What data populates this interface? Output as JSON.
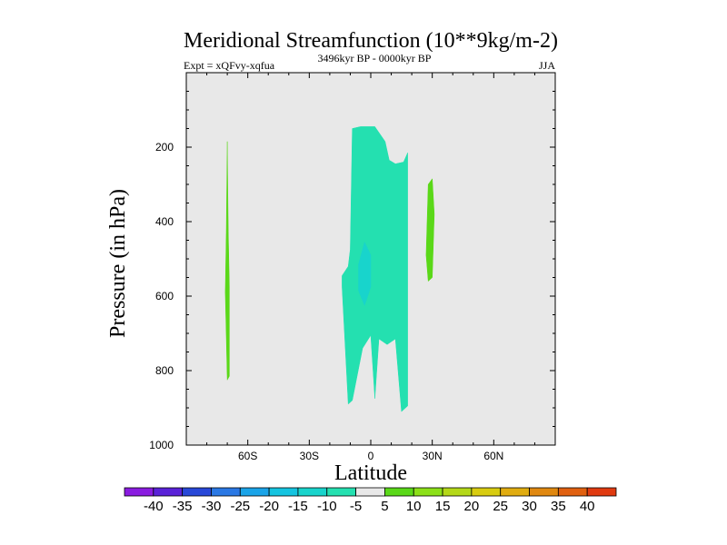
{
  "chart_data": {
    "type": "contour",
    "title": "Meridional Streamfunction (10**9kg/m-2)",
    "subtitle_left": "Expt = xQFvy-xqfua",
    "subtitle_center": "3496kyr BP - 0000kyr BP",
    "subtitle_right": "JJA",
    "xlabel": "Latitude",
    "ylabel": "Pressure (in hPa)",
    "xlim": [
      -90,
      90
    ],
    "ylim": [
      1000,
      0
    ],
    "x_ticks": [
      {
        "value": -60,
        "label": "60S"
      },
      {
        "value": -30,
        "label": "30S"
      },
      {
        "value": 0,
        "label": "0"
      },
      {
        "value": 30,
        "label": "30N"
      },
      {
        "value": 60,
        "label": "60N"
      }
    ],
    "y_ticks": [
      {
        "value": 200,
        "label": "200"
      },
      {
        "value": 400,
        "label": "400"
      },
      {
        "value": 600,
        "label": "600"
      },
      {
        "value": 800,
        "label": "800"
      },
      {
        "value": 1000,
        "label": "1000"
      }
    ],
    "background_fill": "#e8e8e8",
    "colorbar": {
      "labels": [
        "-40",
        "-35",
        "-30",
        "-25",
        "-20",
        "-15",
        "-10",
        "-5",
        "5",
        "10",
        "15",
        "20",
        "25",
        "30",
        "35",
        "40"
      ],
      "colors": [
        "#8a1ce0",
        "#5a22d8",
        "#2848d8",
        "#2a78e4",
        "#1aa4e8",
        "#14c4e0",
        "#18d4cc",
        "#24e0b0",
        "#e8e8e8",
        "#5ad818",
        "#8ce018",
        "#b4d818",
        "#d8cc10",
        "#e0ac10",
        "#e08810",
        "#e06010",
        "#e03a10"
      ]
    },
    "regions": [
      {
        "name": "negative-band-minus5-to-minus10",
        "level": "-5 to -10",
        "color": "#24e0b0",
        "points": [
          [
            -9,
            150
          ],
          [
            -5,
            145
          ],
          [
            2,
            145
          ],
          [
            7,
            185
          ],
          [
            9,
            235
          ],
          [
            12,
            245
          ],
          [
            16,
            240
          ],
          [
            18,
            215
          ],
          [
            18,
            895
          ],
          [
            15,
            910
          ],
          [
            12,
            715
          ],
          [
            8,
            730
          ],
          [
            4,
            715
          ],
          [
            2,
            875
          ],
          [
            0,
            705
          ],
          [
            -4,
            740
          ],
          [
            -9,
            880
          ],
          [
            -11,
            890
          ],
          [
            -14,
            575
          ],
          [
            -14,
            545
          ],
          [
            -11,
            520
          ],
          [
            -10,
            475
          ]
        ]
      },
      {
        "name": "negative-core-minus10-to-minus15",
        "level": "-10 to -15",
        "color": "#18d4cc",
        "points": [
          [
            -6,
            515
          ],
          [
            -3,
            455
          ],
          [
            0,
            490
          ],
          [
            0,
            575
          ],
          [
            -3,
            625
          ],
          [
            -6,
            585
          ]
        ]
      },
      {
        "name": "positive-cell-30N",
        "level": "5 to 10",
        "color": "#5ad818",
        "points": [
          [
            28,
            300
          ],
          [
            30,
            285
          ],
          [
            31,
            380
          ],
          [
            30,
            550
          ],
          [
            28,
            560
          ],
          [
            27,
            490
          ]
        ]
      },
      {
        "name": "positive-cell-70S",
        "level": "5 to 10",
        "color": "#5ad818",
        "points": [
          [
            -70,
            185
          ],
          [
            -69.5,
            425
          ],
          [
            -69,
            575
          ],
          [
            -69,
            815
          ],
          [
            -70,
            825
          ],
          [
            -71,
            590
          ],
          [
            -70.5,
            430
          ]
        ]
      }
    ]
  }
}
